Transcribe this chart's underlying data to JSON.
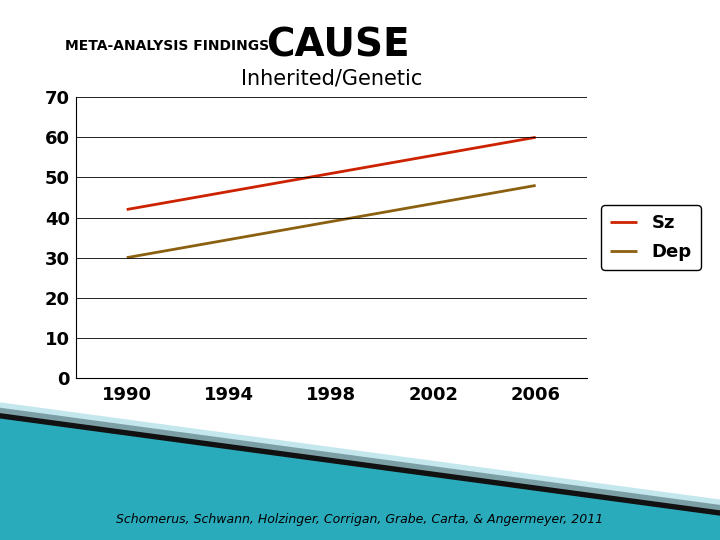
{
  "title_label": "META-ANALYSIS FINDINGS:",
  "title_cause": "CAUSE",
  "subtitle": "Inherited/Genetic",
  "citation": "Schomerus, Schwann, Holzinger, Corrigan, Grabe, Carta, & Angermeyer, 2011",
  "x_values": [
    1990,
    2006
  ],
  "sz_values": [
    42,
    60
  ],
  "dep_values": [
    30,
    48
  ],
  "sz_color": "#cc2200",
  "dep_color": "#8B6010",
  "bg_color": "#ffffff",
  "plot_bg_color": "#ffffff",
  "ylim": [
    0,
    70
  ],
  "yticks": [
    0,
    10,
    20,
    30,
    40,
    50,
    60,
    70
  ],
  "xticks": [
    1990,
    1994,
    1998,
    2002,
    2006
  ],
  "legend_labels": [
    "Sz",
    "Dep"
  ],
  "title_label_fontsize": 10,
  "title_cause_fontsize": 28,
  "subtitle_fontsize": 15,
  "tick_fontsize": 13,
  "legend_fontsize": 13,
  "citation_fontsize": 9,
  "teal_color": "#2aabbc",
  "black_color": "#111111",
  "line_width": 2.0
}
